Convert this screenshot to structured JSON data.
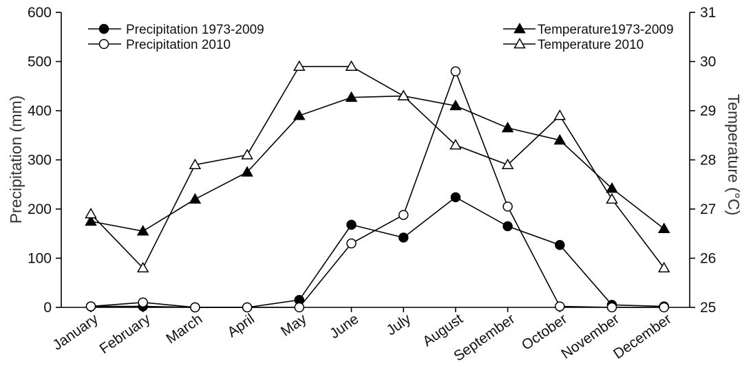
{
  "chart_data": {
    "type": "line",
    "categories": [
      "January",
      "February",
      "March",
      "April",
      "May",
      "June",
      "July",
      "August",
      "September",
      "October",
      "November",
      "December"
    ],
    "y_left": {
      "label": "Precipitation (mm)",
      "range": [
        0,
        600
      ],
      "ticks": [
        "0",
        "100",
        "200",
        "300",
        "400",
        "500",
        "600"
      ]
    },
    "y_right": {
      "label": "Temperature (°C)",
      "range": [
        25,
        31
      ],
      "ticks": [
        "25",
        "26",
        "27",
        "28",
        "29",
        "30",
        "31"
      ]
    },
    "grid": false,
    "series": [
      {
        "name": "Precipitation 1973-2009",
        "axis": "left",
        "marker": "circle-filled",
        "values": [
          2,
          2,
          0,
          0,
          15,
          168,
          142,
          224,
          165,
          127,
          5,
          2
        ]
      },
      {
        "name": "Precipitation 2010",
        "axis": "left",
        "marker": "circle-open",
        "values": [
          2,
          10,
          0,
          0,
          0,
          130,
          188,
          480,
          205,
          2,
          0,
          0
        ]
      },
      {
        "name": "Temperature1973-2009",
        "axis": "right",
        "marker": "triangle-filled",
        "values": [
          26.75,
          26.55,
          27.2,
          27.75,
          28.9,
          29.27,
          29.3,
          29.1,
          28.65,
          28.4,
          27.42,
          26.6
        ]
      },
      {
        "name": "Temperature 2010",
        "axis": "right",
        "marker": "triangle-open",
        "values": [
          26.9,
          25.8,
          27.9,
          28.1,
          29.9,
          29.9,
          29.3,
          28.3,
          27.9,
          28.9,
          27.2,
          25.8
        ]
      }
    ],
    "legend": {
      "left": [
        "Precipitation 1973-2009",
        "Precipitation 2010"
      ],
      "right": [
        "Temperature1973-2009",
        "Temperature 2010"
      ],
      "placement": "top"
    }
  }
}
